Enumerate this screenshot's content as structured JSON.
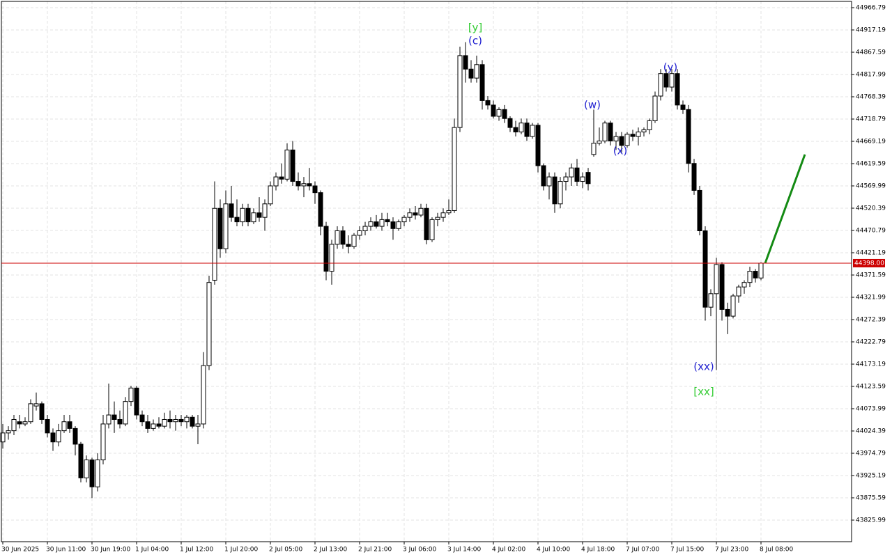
{
  "chart_data": {
    "type": "candlestick",
    "categories": [
      "30 Jun 2025",
      null,
      null,
      null,
      null,
      null,
      null,
      null,
      "30 Jun 11:00",
      null,
      null,
      null,
      null,
      null,
      null,
      null,
      "30 Jun 19:00",
      null,
      null,
      null,
      null,
      null,
      null,
      null,
      "1 Jul 04:00",
      null,
      null,
      null,
      null,
      null,
      null,
      null,
      "1 Jul 12:00",
      null,
      null,
      null,
      null,
      null,
      null,
      null,
      "1 Jul 20:00",
      null,
      null,
      null,
      null,
      null,
      null,
      null,
      "2 Jul 05:00",
      null,
      null,
      null,
      null,
      null,
      null,
      null,
      "2 Jul 13:00",
      null,
      null,
      null,
      null,
      null,
      null,
      null,
      "2 Jul 21:00",
      null,
      null,
      null,
      null,
      null,
      null,
      null,
      "3 Jul 06:00",
      null,
      null,
      null,
      null,
      null,
      null,
      null,
      "3 Jul 14:00",
      null,
      null,
      null,
      null,
      null,
      null,
      null,
      "4 Jul 02:00",
      null,
      null,
      null,
      null,
      null,
      null,
      null,
      "4 Jul 10:00",
      null,
      null,
      null,
      null,
      null,
      null,
      null,
      "4 Jul 18:00",
      null,
      null,
      null,
      null,
      null,
      null,
      null,
      "7 Jul 07:00",
      null,
      null,
      null,
      null,
      null,
      null,
      null,
      "7 Jul 15:00",
      null,
      null,
      null,
      null,
      null,
      null,
      null,
      "7 Jul 23:00",
      null,
      null,
      null,
      null,
      null,
      null,
      null,
      "8 Jul 08:00"
    ],
    "open": [
      44000,
      44020,
      44025,
      44045,
      44040,
      44045,
      44080,
      44085,
      44050,
      44020,
      44000,
      44025,
      44045,
      44030,
      43995,
      43920,
      43960,
      43900,
      43960,
      44040,
      44060,
      44050,
      44040,
      44090,
      44120,
      44060,
      44045,
      44030,
      44040,
      44035,
      44050,
      44045,
      44050,
      44045,
      44055,
      44035,
      44040,
      44170,
      44360,
      44520,
      44430,
      44530,
      44500,
      44490,
      44520,
      44490,
      44510,
      44500,
      44530,
      44570,
      44590,
      44585,
      44650,
      44580,
      44570,
      44575,
      44570,
      44555,
      44480,
      44380,
      44440,
      44470,
      44440,
      44435,
      44460,
      44470,
      44480,
      44490,
      44480,
      44495,
      44490,
      44475,
      44490,
      44500,
      44510,
      44505,
      44520,
      44450,
      44495,
      44500,
      44510,
      44515,
      44700,
      44860,
      44830,
      44810,
      44840,
      44760,
      44750,
      44725,
      44740,
      44720,
      44700,
      44690,
      44710,
      44680,
      44705,
      44615,
      44570,
      44590,
      44530,
      44580,
      44590,
      44610,
      44580,
      44600,
      44640,
      44665,
      44670,
      44710,
      44670,
      44680,
      44660,
      44685,
      44680,
      44690,
      44695,
      44715,
      44770,
      44820,
      44790,
      44820,
      44750,
      44740,
      44620,
      44560,
      44470,
      44300,
      44330,
      44395,
      44295,
      44280,
      44325,
      44345,
      44355,
      44380,
      44365
    ],
    "high": [
      44040,
      44035,
      44060,
      44060,
      44055,
      44095,
      44110,
      44090,
      44060,
      44030,
      44040,
      44060,
      44060,
      44035,
      44000,
      43970,
      43965,
      43975,
      44060,
      44130,
      44090,
      44070,
      44100,
      44125,
      44125,
      44070,
      44060,
      44050,
      44055,
      44065,
      44070,
      44060,
      44060,
      44060,
      44060,
      44060,
      44200,
      44370,
      44580,
      44540,
      44560,
      44570,
      44540,
      44530,
      44530,
      44520,
      44545,
      44540,
      44580,
      44600,
      44620,
      44665,
      44670,
      44600,
      44590,
      44610,
      44580,
      44560,
      44490,
      44450,
      44480,
      44480,
      44460,
      44465,
      44480,
      44490,
      44500,
      44505,
      44510,
      44510,
      44500,
      44495,
      44505,
      44520,
      44525,
      44530,
      44530,
      44500,
      44510,
      44520,
      44540,
      44720,
      44880,
      44890,
      44850,
      44860,
      44850,
      44770,
      44760,
      44745,
      44750,
      44725,
      44715,
      44720,
      44720,
      44710,
      44710,
      44620,
      44600,
      44600,
      44590,
      44600,
      44620,
      44630,
      44600,
      44610,
      44740,
      44700,
      44715,
      44715,
      44690,
      44690,
      44690,
      44695,
      44700,
      44700,
      44720,
      44780,
      44830,
      44830,
      44830,
      44830,
      44760,
      44750,
      44630,
      44570,
      44480,
      44340,
      44410,
      44400,
      44310,
      44330,
      44350,
      44360,
      44390,
      44385,
      44400
    ],
    "low": [
      43985,
      44005,
      44015,
      44030,
      44035,
      44040,
      44070,
      44040,
      44010,
      43980,
      43990,
      44020,
      44020,
      43970,
      43910,
      43910,
      43875,
      43890,
      43950,
      44030,
      44020,
      44030,
      44035,
      44080,
      44050,
      44035,
      44020,
      44025,
      44030,
      44030,
      44030,
      44025,
      44035,
      44030,
      44030,
      43995,
      44030,
      44160,
      44350,
      44410,
      44420,
      44490,
      44480,
      44480,
      44480,
      44485,
      44490,
      44470,
      44525,
      44560,
      44575,
      44580,
      44570,
      44560,
      44545,
      44560,
      44530,
      44460,
      44360,
      44350,
      44430,
      44430,
      44420,
      44430,
      44450,
      44460,
      44470,
      44475,
      44470,
      44480,
      44450,
      44470,
      44480,
      44490,
      44495,
      44500,
      44440,
      44445,
      44480,
      44490,
      44505,
      44510,
      44690,
      44800,
      44800,
      44800,
      44740,
      44740,
      44720,
      44715,
      44710,
      44690,
      44680,
      44685,
      44670,
      44675,
      44600,
      44560,
      44540,
      44510,
      44520,
      44560,
      44570,
      44570,
      44565,
      44560,
      44635,
      44660,
      44665,
      44660,
      44650,
      44645,
      44655,
      44670,
      44660,
      44680,
      44685,
      44710,
      44760,
      44780,
      44780,
      44740,
      44730,
      44600,
      44550,
      44460,
      44270,
      44280,
      44160,
      44270,
      44240,
      44275,
      44310,
      44330,
      44345,
      44355,
      44360
    ],
    "close": [
      44020,
      44025,
      44050,
      44040,
      44045,
      44085,
      44085,
      44050,
      44020,
      44000,
      44025,
      44045,
      44030,
      43995,
      43920,
      43960,
      43900,
      43960,
      44040,
      44060,
      44050,
      44040,
      44090,
      44120,
      44060,
      44045,
      44030,
      44040,
      44035,
      44050,
      44045,
      44050,
      44045,
      44055,
      44035,
      44040,
      44170,
      44355,
      44520,
      44430,
      44530,
      44500,
      44490,
      44520,
      44490,
      44510,
      44500,
      44530,
      44570,
      44590,
      44585,
      44650,
      44580,
      44570,
      44575,
      44570,
      44555,
      44480,
      44380,
      44440,
      44470,
      44440,
      44435,
      44460,
      44470,
      44480,
      44490,
      44480,
      44495,
      44490,
      44475,
      44490,
      44500,
      44510,
      44505,
      44520,
      44450,
      44495,
      44500,
      44510,
      44515,
      44700,
      44860,
      44830,
      44810,
      44840,
      44760,
      44750,
      44725,
      44740,
      44720,
      44700,
      44690,
      44710,
      44680,
      44705,
      44615,
      44570,
      44590,
      44530,
      44580,
      44590,
      44610,
      44580,
      44590,
      44575,
      44665,
      44670,
      44710,
      44670,
      44680,
      44660,
      44685,
      44680,
      44690,
      44695,
      44715,
      44770,
      44820,
      44790,
      44820,
      44750,
      44740,
      44620,
      44560,
      44470,
      44300,
      44330,
      44395,
      44295,
      44280,
      44325,
      44345,
      44355,
      44380,
      44365,
      44398
    ],
    "ylim": [
      43777.94,
      44980.74
    ],
    "yticks": [
      44966.79,
      44917.19,
      44867.59,
      44817.99,
      44768.39,
      44718.79,
      44669.19,
      44619.59,
      44569.99,
      44520.39,
      44470.79,
      44421.19,
      44371.59,
      44321.99,
      44272.39,
      44222.79,
      44173.19,
      44123.59,
      44073.99,
      44024.39,
      43974.79,
      43925.19,
      43875.59,
      43825.99
    ],
    "current_price": {
      "value": 44398,
      "label": "44398.00"
    },
    "forecast": [
      44398,
      44640
    ],
    "forecast_color": "#138a13",
    "price_line_color": "#cc0000",
    "grid": true,
    "annotations": [
      "[y]",
      "(c)",
      "(w)",
      "(x)",
      "(y)",
      "(xx)",
      "[xx]"
    ]
  }
}
